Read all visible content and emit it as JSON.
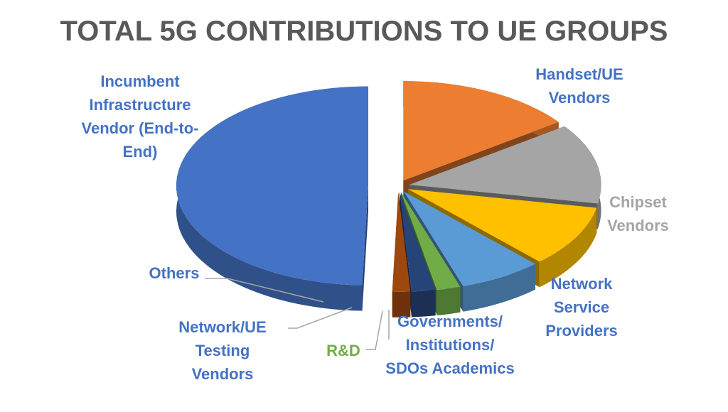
{
  "chart_data": {
    "type": "pie",
    "title": "TOTAL 5G CONTRIBUTIONS TO UE GROUPS",
    "categories": [
      "Handset/UE Vendors",
      "Chipset Vendors",
      "Network Service Providers",
      "Governments/ Institutions/ SDOs Academics",
      "R&D",
      "Network/UE Testing Vendors",
      "Others",
      "Incumbent Infrastructure Vendor (End-to-End)"
    ],
    "values": [
      15,
      13,
      10,
      7,
      2,
      2,
      1.5,
      49.5
    ],
    "colors": [
      "#ED7D31",
      "#A5A5A5",
      "#FFC000",
      "#5B9BD5",
      "#70AD47",
      "#264478",
      "#9E480E",
      "#4472C4"
    ]
  }
}
